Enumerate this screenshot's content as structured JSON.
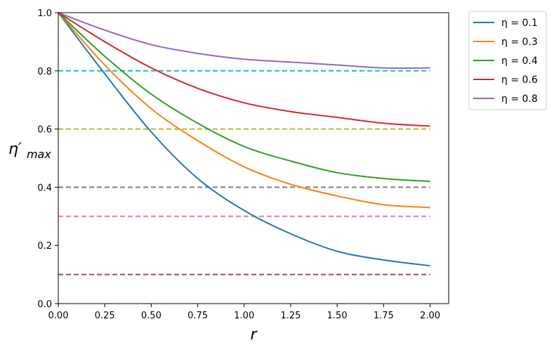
{
  "chart_data": {
    "type": "line",
    "xlabel": "r",
    "ylabel_main": "η′",
    "ylabel_sub": "max",
    "xlim": [
      0.0,
      2.1
    ],
    "ylim": [
      0.0,
      1.0
    ],
    "xticks": [
      0.0,
      0.25,
      0.5,
      0.75,
      1.0,
      1.25,
      1.5,
      1.75,
      2.0
    ],
    "xtick_labels": [
      "0.00",
      "0.25",
      "0.50",
      "0.75",
      "1.00",
      "1.25",
      "1.50",
      "1.75",
      "2.00"
    ],
    "yticks": [
      0.0,
      0.2,
      0.4,
      0.6,
      0.8,
      1.0
    ],
    "ytick_labels": [
      "0.0",
      "0.2",
      "0.4",
      "0.6",
      "0.8",
      "1.0"
    ],
    "grid": false,
    "legend_placement": "outside-top-right",
    "x": [
      0.0,
      0.25,
      0.5,
      0.75,
      1.0,
      1.25,
      1.5,
      1.75,
      2.0
    ],
    "series": [
      {
        "name": "η = 0.1",
        "color": "#1f77b4",
        "values": [
          1.0,
          0.79,
          0.59,
          0.43,
          0.32,
          0.24,
          0.18,
          0.15,
          0.13
        ]
      },
      {
        "name": "η = 0.3",
        "color": "#ff7f0e",
        "values": [
          1.0,
          0.82,
          0.67,
          0.56,
          0.47,
          0.41,
          0.37,
          0.34,
          0.33
        ]
      },
      {
        "name": "η = 0.4",
        "color": "#2ca02c",
        "values": [
          1.0,
          0.85,
          0.72,
          0.62,
          0.54,
          0.49,
          0.45,
          0.43,
          0.42
        ]
      },
      {
        "name": "η = 0.6",
        "color": "#d62728",
        "values": [
          1.0,
          0.9,
          0.81,
          0.74,
          0.69,
          0.66,
          0.64,
          0.62,
          0.61
        ]
      },
      {
        "name": "η = 0.8",
        "color": "#9467bd",
        "values": [
          1.0,
          0.94,
          0.89,
          0.86,
          0.84,
          0.83,
          0.82,
          0.81,
          0.81
        ]
      }
    ],
    "reference_lines": [
      {
        "y": 0.8,
        "color": "#17becf"
      },
      {
        "y": 0.6,
        "color": "#bcbd22"
      },
      {
        "y": 0.4,
        "color": "#7f7f7f"
      },
      {
        "y": 0.3,
        "color": "#e377c2"
      },
      {
        "y": 0.1,
        "color": "#8c564b"
      }
    ]
  }
}
